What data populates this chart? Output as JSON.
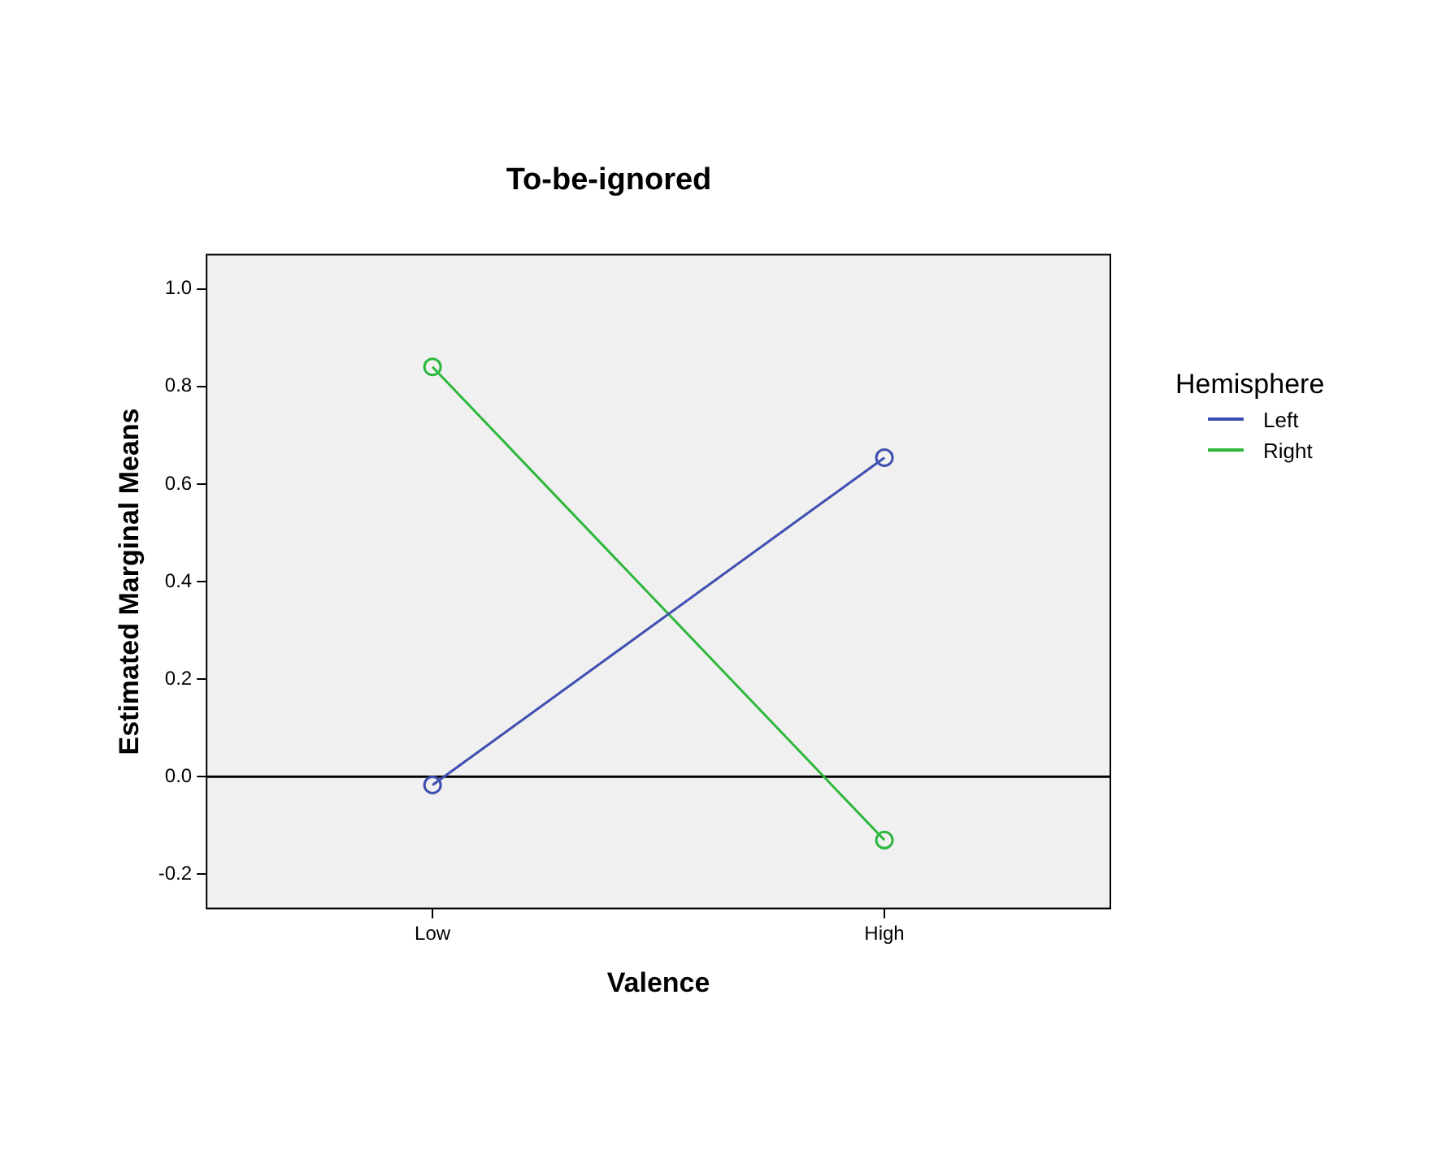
{
  "chart_data": {
    "type": "line",
    "title": "To-be-ignored",
    "xlabel": "Valence",
    "ylabel": "Estimated Marginal Means",
    "legend_title": "Hemisphere",
    "categories": [
      "Low",
      "High"
    ],
    "series": [
      {
        "name": "Left",
        "color": "#3f4fb0",
        "values": [
          -0.017,
          0.654
        ]
      },
      {
        "name": "Right",
        "color": "#2db83d",
        "values": [
          0.84,
          -0.13
        ]
      }
    ],
    "ylim": [
      -0.27,
      1.07
    ],
    "yticks": [
      -0.2,
      {
        "value": 0,
        "label": "0.0"
      },
      0.2,
      0.4,
      0.6,
      0.8,
      {
        "value": 1,
        "label": "1.0"
      }
    ],
    "ref_lines": [
      {
        "axis": "y",
        "value": 0,
        "color": "#000000"
      }
    ],
    "grid": false,
    "legend": "right",
    "marker": "circle",
    "line_style": "solid"
  }
}
